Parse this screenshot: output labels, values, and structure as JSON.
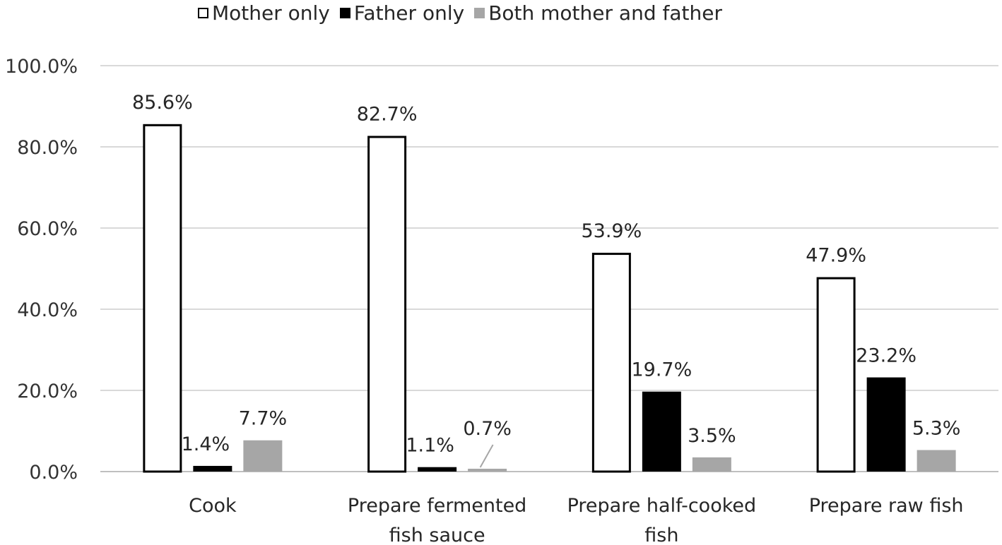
{
  "chart_data": {
    "type": "bar",
    "categories": [
      [
        "Cook"
      ],
      [
        "Prepare fermented",
        "fish sauce"
      ],
      [
        "Prepare half-cooked",
        "fish"
      ],
      [
        "Prepare raw fish"
      ]
    ],
    "series": [
      {
        "name": "Mother only",
        "values": [
          85.6,
          82.7,
          53.9,
          47.9
        ],
        "labels": [
          "85.6%",
          "82.7%",
          "53.9%",
          "47.9%"
        ]
      },
      {
        "name": "Father only",
        "values": [
          1.4,
          1.1,
          19.7,
          23.2
        ],
        "labels": [
          "1.4%",
          "1.1%",
          "19.7%",
          "23.2%"
        ]
      },
      {
        "name": "Both mother and father",
        "values": [
          7.7,
          0.7,
          3.5,
          5.3
        ],
        "labels": [
          "7.7%",
          "0.7%",
          "3.5%",
          "5.3%"
        ]
      }
    ],
    "yticks": [
      "0.0%",
      "20.0%",
      "40.0%",
      "60.0%",
      "80.0%",
      "100.0%"
    ],
    "ylim": [
      0,
      100
    ],
    "grid": true,
    "legend_position": "top",
    "colors": {
      "mother_fill": "#ffffff",
      "mother_stroke": "#000000",
      "father": "#000000",
      "both": "#a6a6a6",
      "grid": "#d9d9d9"
    }
  }
}
